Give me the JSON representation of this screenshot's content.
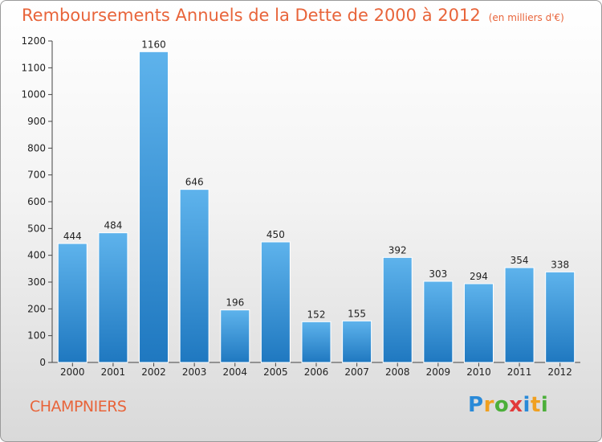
{
  "header": {
    "title": "Remboursements Annuels de la Dette de 2000 à 2012",
    "unit": "(en milliers d'€)"
  },
  "footer": {
    "city": "CHAMPNIERS",
    "logo": "Proxiti"
  },
  "colors": {
    "bar_top": "#5eb3ec",
    "bar_bottom": "#1f78c0",
    "title": "#e8643a"
  },
  "chart_data": {
    "type": "bar",
    "title": "Remboursements Annuels de la Dette de 2000 à 2012",
    "categories": [
      "2000",
      "2001",
      "2002",
      "2003",
      "2004",
      "2005",
      "2006",
      "2007",
      "2008",
      "2009",
      "2010",
      "2011",
      "2012"
    ],
    "values": [
      444,
      484,
      1160,
      646,
      196,
      450,
      152,
      155,
      392,
      303,
      294,
      354,
      338
    ],
    "ylim": [
      0,
      1200
    ],
    "yticks": [
      0,
      100,
      200,
      300,
      400,
      500,
      600,
      700,
      800,
      900,
      1000,
      1100,
      1200
    ],
    "grid": false,
    "legend": "none"
  }
}
